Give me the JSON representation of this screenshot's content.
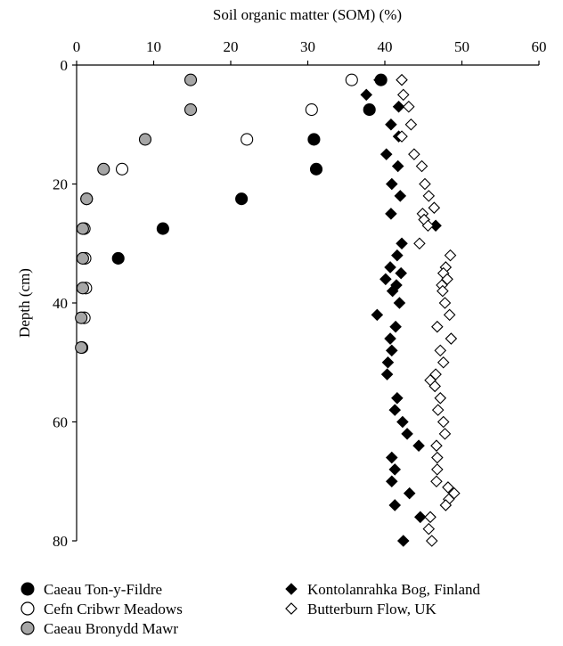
{
  "chart_data": {
    "type": "scatter",
    "title": "",
    "xlabel": "Soil organic matter (SOM) (%)",
    "ylabel": "Depth (cm)",
    "xlim": [
      0,
      60
    ],
    "ylim": [
      0,
      80
    ],
    "y_inverted": true,
    "x_axis_position": "top",
    "x_ticks": [
      "0",
      "10",
      "20",
      "30",
      "40",
      "50",
      "60"
    ],
    "y_ticks": [
      "0",
      "20",
      "40",
      "60",
      "80"
    ],
    "grid": false,
    "legend_position": "bottom",
    "series": [
      {
        "name": "Caeau Ton-y-Fildre",
        "marker": "circle",
        "fill": "#000000",
        "points": [
          [
            39.5,
            2.5
          ],
          [
            38,
            7.5
          ],
          [
            30.8,
            12.5
          ],
          [
            31.1,
            17.5
          ],
          [
            21.4,
            22.5
          ],
          [
            11.2,
            27.5
          ],
          [
            5.4,
            32.5
          ]
        ]
      },
      {
        "name": "Cefn Cribwr Meadows",
        "marker": "circle",
        "fill": "#ffffff",
        "points": [
          [
            35.7,
            2.5
          ],
          [
            30.5,
            7.5
          ],
          [
            22.1,
            12.5
          ],
          [
            5.9,
            17.5
          ],
          [
            1.3,
            22.5
          ],
          [
            1.0,
            27.5
          ],
          [
            1.1,
            32.5
          ],
          [
            1.2,
            37.5
          ],
          [
            1.0,
            42.5
          ],
          [
            0.7,
            47.5
          ]
        ]
      },
      {
        "name": "Caeau Bronydd Mawr",
        "marker": "circle",
        "fill": "#a6a6a6",
        "points": [
          [
            14.8,
            2.5
          ],
          [
            14.8,
            7.5
          ],
          [
            8.9,
            12.5
          ],
          [
            3.5,
            17.5
          ],
          [
            1.3,
            22.5
          ],
          [
            0.8,
            27.5
          ],
          [
            0.8,
            32.5
          ],
          [
            0.8,
            37.5
          ],
          [
            0.6,
            42.5
          ],
          [
            0.6,
            47.5
          ]
        ]
      },
      {
        "name": "Kontolanrahka Bog, Finland",
        "marker": "diamond",
        "fill": "#000000",
        "points": [
          [
            39.3,
            2.5
          ],
          [
            37.6,
            5
          ],
          [
            41.8,
            7
          ],
          [
            40.8,
            10
          ],
          [
            41.8,
            12
          ],
          [
            40.2,
            15
          ],
          [
            41.7,
            17
          ],
          [
            40.9,
            20
          ],
          [
            42.0,
            22
          ],
          [
            40.8,
            25
          ],
          [
            46.6,
            27
          ],
          [
            42.2,
            30
          ],
          [
            41.6,
            32
          ],
          [
            40.7,
            34
          ],
          [
            42.1,
            35
          ],
          [
            40.1,
            36
          ],
          [
            41.5,
            37
          ],
          [
            41.0,
            38
          ],
          [
            41.9,
            40
          ],
          [
            39.0,
            42
          ],
          [
            41.4,
            44
          ],
          [
            40.7,
            46
          ],
          [
            40.9,
            48
          ],
          [
            40.4,
            50
          ],
          [
            40.3,
            52
          ],
          [
            41.6,
            56
          ],
          [
            41.3,
            58
          ],
          [
            42.3,
            60
          ],
          [
            42.9,
            62
          ],
          [
            44.4,
            64
          ],
          [
            40.9,
            66
          ],
          [
            41.3,
            68
          ],
          [
            40.9,
            70
          ],
          [
            43.2,
            72
          ],
          [
            41.3,
            74
          ],
          [
            44.6,
            76
          ],
          [
            42.4,
            80
          ]
        ]
      },
      {
        "name": "Butterburn Flow, UK",
        "marker": "diamond",
        "fill": "#ffffff",
        "points": [
          [
            42.2,
            2.5
          ],
          [
            42.4,
            5
          ],
          [
            43.1,
            7
          ],
          [
            43.4,
            10
          ],
          [
            42.2,
            12
          ],
          [
            43.8,
            15
          ],
          [
            44.8,
            17
          ],
          [
            45.2,
            20
          ],
          [
            45.7,
            22
          ],
          [
            46.4,
            24
          ],
          [
            44.9,
            25
          ],
          [
            45.1,
            26
          ],
          [
            45.6,
            27
          ],
          [
            44.5,
            30
          ],
          [
            48.5,
            32
          ],
          [
            47.9,
            34
          ],
          [
            47.6,
            35
          ],
          [
            48.1,
            36
          ],
          [
            47.4,
            37
          ],
          [
            47.5,
            38
          ],
          [
            47.8,
            40
          ],
          [
            48.4,
            42
          ],
          [
            46.8,
            44
          ],
          [
            48.6,
            46
          ],
          [
            47.2,
            48
          ],
          [
            47.6,
            50
          ],
          [
            46.6,
            52
          ],
          [
            45.9,
            53
          ],
          [
            46.5,
            54
          ],
          [
            47.2,
            56
          ],
          [
            46.9,
            58
          ],
          [
            47.6,
            60
          ],
          [
            47.8,
            62
          ],
          [
            46.7,
            64
          ],
          [
            46.8,
            66
          ],
          [
            46.8,
            68
          ],
          [
            46.7,
            70
          ],
          [
            48.2,
            71
          ],
          [
            49.0,
            72
          ],
          [
            48.3,
            73
          ],
          [
            47.9,
            74
          ],
          [
            45.9,
            76
          ],
          [
            45.7,
            78
          ],
          [
            46.1,
            80
          ]
        ]
      }
    ]
  }
}
